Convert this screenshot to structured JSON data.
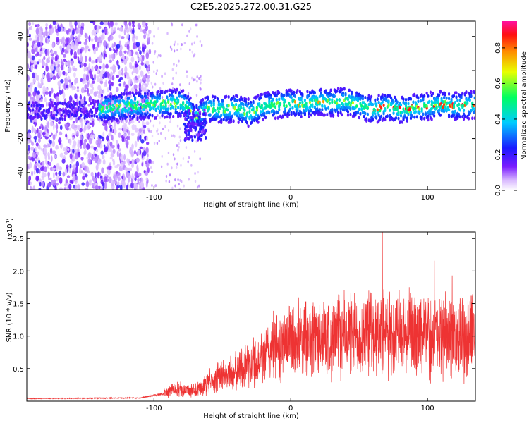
{
  "title": "C2E5.2025.272.00.31.G25",
  "colors": {
    "snr_line": "#ee3333",
    "axis": "#000000",
    "background": "#ffffff"
  },
  "chart_data": [
    {
      "type": "heatmap",
      "name": "spectrogram",
      "xlabel": "Height of straight line (km)",
      "ylabel": "Frequency (Hz)",
      "xlim": [
        -193,
        135
      ],
      "ylim": [
        -50,
        49
      ],
      "xticks": [
        -100,
        0,
        100
      ],
      "xtick_labels": [
        "-100",
        "0",
        "100"
      ],
      "yticks": [
        -40,
        -20,
        0,
        20,
        40
      ],
      "ytick_labels": [
        "-40",
        "-20",
        "0",
        "20",
        "40"
      ],
      "colorbar": {
        "label": "Normalized spectral amplitude",
        "range": [
          0.0,
          0.95
        ],
        "ticks": [
          0.0,
          0.2,
          0.4,
          0.6,
          0.8
        ],
        "tick_labels": [
          "0.0",
          "0.2",
          "0.4",
          "0.6",
          "0.8"
        ]
      },
      "signal_band_center_hz": [
        [
          -193,
          -3
        ],
        [
          -170,
          -4
        ],
        [
          -150,
          -3
        ],
        [
          -135,
          -2
        ],
        [
          -120,
          -1
        ],
        [
          -100,
          0
        ],
        [
          -80,
          1
        ],
        [
          -75,
          -2
        ],
        [
          -70,
          -8
        ],
        [
          -60,
          -2
        ],
        [
          -50,
          -3
        ],
        [
          -40,
          -2
        ],
        [
          -30,
          -5
        ],
        [
          -20,
          -1
        ],
        [
          -10,
          0
        ],
        [
          0,
          1
        ],
        [
          10,
          0
        ],
        [
          20,
          2
        ],
        [
          30,
          1
        ],
        [
          40,
          2
        ],
        [
          50,
          0
        ],
        [
          60,
          -3
        ],
        [
          70,
          -1
        ],
        [
          80,
          -3
        ],
        [
          90,
          -2
        ],
        [
          100,
          -1
        ],
        [
          110,
          0
        ],
        [
          120,
          -1
        ],
        [
          135,
          0
        ]
      ]
    },
    {
      "type": "line",
      "name": "snr",
      "xlabel": "Height of straight line (km)",
      "ylabel": "SNR (10 * v/v)",
      "y_multiplier": "(x10",
      "y_multiplier_exp": "4",
      "y_multiplier_close": ")",
      "xlim": [
        -193,
        135
      ],
      "ylim": [
        0,
        26000
      ],
      "xticks": [
        -100,
        0,
        100
      ],
      "xtick_labels": [
        "-100",
        "0",
        "100"
      ],
      "yticks": [
        5000,
        10000,
        15000,
        20000,
        25000
      ],
      "ytick_labels": [
        "0.5",
        "1.0",
        "1.5",
        "2.0",
        "2.5"
      ],
      "series": [
        {
          "name": "SNR",
          "envelope": [
            [
              -193,
              400
            ],
            [
              -150,
              450
            ],
            [
              -110,
              500
            ],
            [
              -92,
              1200
            ],
            [
              -85,
              1800
            ],
            [
              -70,
              1600
            ],
            [
              -55,
              3500
            ],
            [
              -40,
              4500
            ],
            [
              -30,
              5500
            ],
            [
              -20,
              7000
            ],
            [
              -10,
              8500
            ],
            [
              0,
              9000
            ],
            [
              10,
              9500
            ],
            [
              20,
              9800
            ],
            [
              30,
              10000
            ],
            [
              40,
              10200
            ],
            [
              50,
              10300
            ],
            [
              60,
              10400
            ],
            [
              66,
              10500
            ],
            [
              70,
              10200
            ],
            [
              80,
              10000
            ],
            [
              90,
              10100
            ],
            [
              100,
              10000
            ],
            [
              110,
              10100
            ],
            [
              120,
              10000
            ],
            [
              135,
              10100
            ]
          ],
          "peak": [
            67,
            26000
          ]
        }
      ]
    }
  ]
}
